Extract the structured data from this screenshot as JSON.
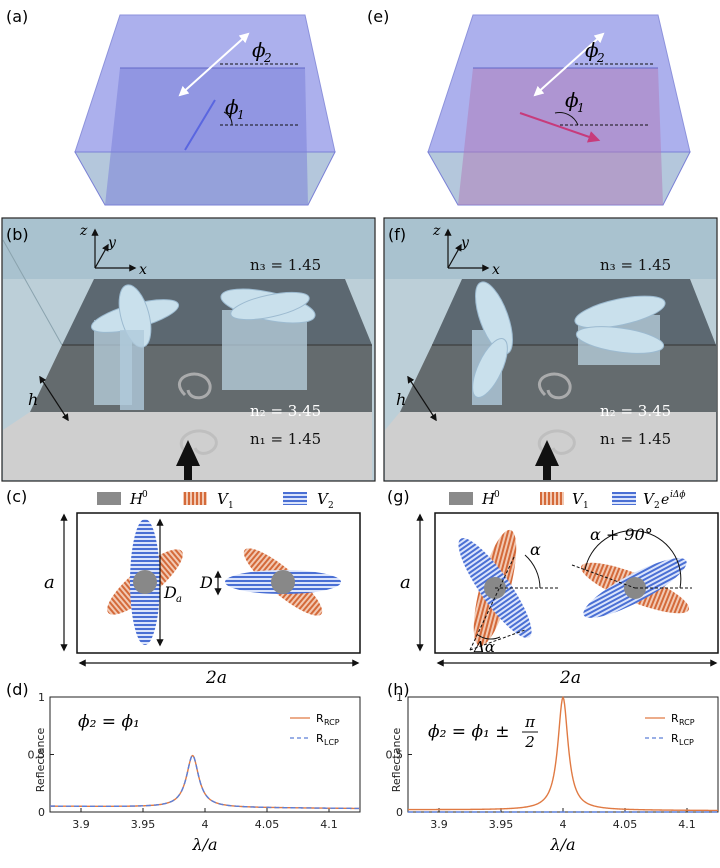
{
  "panels": {
    "a": "(a)",
    "b": "(b)",
    "c": "(c)",
    "d": "(d)",
    "e": "(e)",
    "f": "(f)",
    "g": "(g)",
    "h": "(h)"
  },
  "labels": {
    "phi2": "ϕ",
    "phi2_sub": "2",
    "phi1": "ϕ",
    "phi1_sub": "1",
    "z": "z",
    "y": "y",
    "x": "x",
    "h": "h",
    "n3": "n₃ = 1.45",
    "n2": "n₂ = 3.45",
    "n1": "n₁ = 1.45",
    "legend_H": "H",
    "legend_H_sup": "0",
    "legend_V1": "V",
    "legend_V1_sub": "1",
    "legend_V2": "V",
    "legend_V2_sub": "2",
    "legend_V2_phase": "e",
    "legend_V2_phase_sup": "iΔϕ",
    "a_dim": "a",
    "two_a": "2a",
    "Da": "D",
    "Da_sub": "a",
    "D": "D",
    "alpha": "α",
    "alpha90": "α + 90°",
    "dalpha": "Δα",
    "eq_d": "ϕ₂ = ϕ₁",
    "eq_h_left": "ϕ₂ = ϕ₁ ±",
    "eq_h_num": "π",
    "eq_h_den": "2"
  },
  "colors": {
    "box_blue": "#8f95e6",
    "box_pink": "#b795c8",
    "substrate": "#c7d9de",
    "accent_orange": "#e07a43",
    "accent_blue": "#5c7fd8",
    "gray_disk": "#888888"
  },
  "chart_data": [
    {
      "type": "line",
      "panel": "d",
      "ylabel": "Reflectance",
      "xlabel": "λ/a",
      "xlim": [
        3.875,
        4.125
      ],
      "ylim": [
        0,
        1.0
      ],
      "xticks": [
        "3.9",
        "3.95",
        "4",
        "4.05",
        "4.1"
      ],
      "xtick_values": [
        3.9,
        3.95,
        4.0,
        4.05,
        4.1
      ],
      "yticks": [
        "0",
        "0.5",
        "1"
      ],
      "ytick_values": [
        0,
        0.5,
        1
      ],
      "series": [
        {
          "name": "R",
          "name_sub": "RCP",
          "style": "solid",
          "color": "#e07a43",
          "peak_x": 3.99,
          "peak_y": 0.5,
          "width": 0.006,
          "baseline": 0.05
        },
        {
          "name": "R",
          "name_sub": "LCP",
          "style": "dashed",
          "color": "#5c7fd8",
          "peak_x": 3.99,
          "peak_y": 0.5,
          "width": 0.006,
          "baseline": 0.05
        }
      ]
    },
    {
      "type": "line",
      "panel": "h",
      "ylabel": "Reflectance",
      "xlabel": "λ/a",
      "xlim": [
        3.875,
        4.125
      ],
      "ylim": [
        0,
        1.0
      ],
      "xticks": [
        "3.9",
        "3.95",
        "4",
        "4.05",
        "4.1"
      ],
      "xtick_values": [
        3.9,
        3.95,
        4.0,
        4.05,
        4.1
      ],
      "yticks": [
        "0",
        "0.5",
        "1"
      ],
      "ytick_values": [
        0,
        0.5,
        1
      ],
      "series": [
        {
          "name": "R",
          "name_sub": "RCP",
          "style": "solid",
          "color": "#e07a43",
          "peak_x": 4.0,
          "peak_y": 1.0,
          "width": 0.005,
          "baseline": 0.02
        },
        {
          "name": "R",
          "name_sub": "LCP",
          "style": "dashed",
          "color": "#5c7fd8",
          "peak_x": 4.0,
          "peak_y": 0.0,
          "width": 0.005,
          "baseline": 0.0
        }
      ]
    }
  ]
}
